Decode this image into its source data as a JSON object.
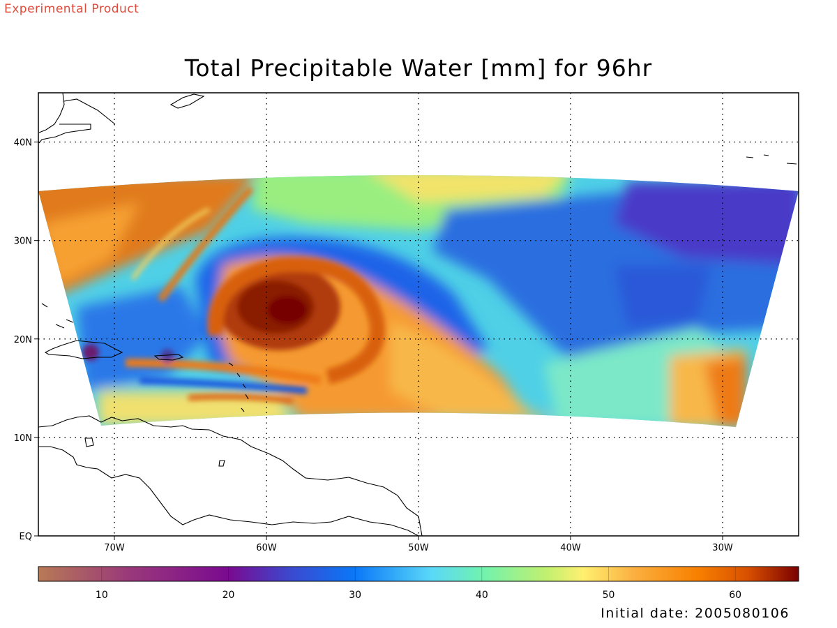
{
  "header": {
    "product_label": "Experimental Product",
    "title": "Total Precipitable Water [mm] for 96hr"
  },
  "map": {
    "extent": {
      "lon_min": -75,
      "lon_max": -25,
      "lat_min": 0,
      "lat_max": 45
    },
    "gridlines": "dotted",
    "lat_ticks": [
      {
        "value": 0,
        "label": "EQ"
      },
      {
        "value": 10,
        "label": "10N"
      },
      {
        "value": 20,
        "label": "20N"
      },
      {
        "value": 30,
        "label": "30N"
      },
      {
        "value": 40,
        "label": "40N"
      }
    ],
    "lon_ticks": [
      {
        "value": -70,
        "label": "70W"
      },
      {
        "value": -60,
        "label": "60W"
      },
      {
        "value": -50,
        "label": "50W"
      },
      {
        "value": -40,
        "label": "40W"
      },
      {
        "value": -30,
        "label": "30W"
      }
    ],
    "features": {
      "hurricane_center": {
        "lon": -55,
        "lat": 23
      }
    }
  },
  "colorbar": {
    "min": 5,
    "max": 65,
    "tick_values": [
      10,
      20,
      30,
      40,
      50,
      60
    ],
    "tick_labels": [
      "10",
      "20",
      "30",
      "40",
      "50",
      "60"
    ],
    "stops": [
      {
        "v": 5,
        "color": "#b87a55"
      },
      {
        "v": 12,
        "color": "#9a3a7a"
      },
      {
        "v": 20,
        "color": "#7a0a90"
      },
      {
        "v": 25,
        "color": "#3a4ad0"
      },
      {
        "v": 30,
        "color": "#0a78f8"
      },
      {
        "v": 36,
        "color": "#5ad8f8"
      },
      {
        "v": 40,
        "color": "#70f2b0"
      },
      {
        "v": 45,
        "color": "#c0f070"
      },
      {
        "v": 48,
        "color": "#fff070"
      },
      {
        "v": 52,
        "color": "#fbb040"
      },
      {
        "v": 57,
        "color": "#f88000"
      },
      {
        "v": 61,
        "color": "#d85000"
      },
      {
        "v": 65,
        "color": "#7a0000"
      }
    ]
  },
  "footer": {
    "initial_date": "Initial date: 2005080106"
  }
}
